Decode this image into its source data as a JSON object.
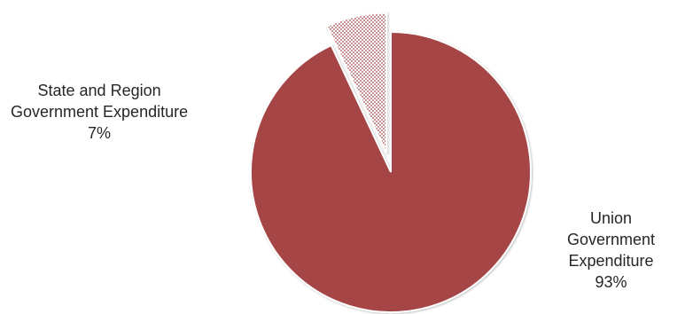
{
  "chart_data": {
    "type": "pie",
    "title": "",
    "slices": [
      {
        "name": "Union Government Expenditure",
        "label_lines": [
          "Union",
          "Government",
          "Expenditure"
        ],
        "value": 93,
        "percent_label": "93%",
        "color": "#A54444",
        "pattern": "solid",
        "exploded": false
      },
      {
        "name": "State and Region Government Expenditure",
        "label_lines": [
          "State and Region",
          "Government Expenditure"
        ],
        "value": 7,
        "percent_label": "7%",
        "color": "#A54444",
        "pattern": "dotted",
        "exploded": true
      }
    ],
    "legend": "none"
  }
}
